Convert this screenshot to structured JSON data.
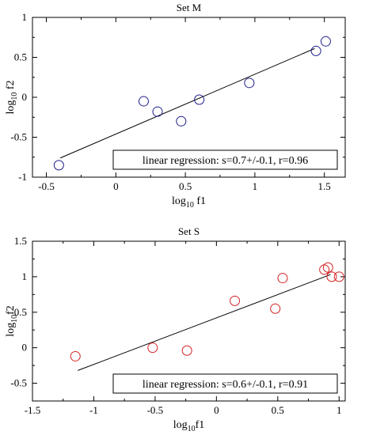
{
  "chart_data": [
    {
      "type": "scatter",
      "title": "Set M",
      "xlabel_base": "log",
      "xlabel_sub": "10",
      "xlabel_rest": " f1",
      "ylabel_base": "log",
      "ylabel_sub": "10",
      "ylabel_rest": " f2",
      "xlim": [
        -0.6,
        1.65
      ],
      "ylim": [
        -1,
        1
      ],
      "xticks": [
        -0.5,
        0,
        0.5,
        1,
        1.5
      ],
      "xtick_labels": [
        "-0.5",
        "0",
        "0.5",
        "1",
        "1.5"
      ],
      "yticks": [
        -1,
        -0.5,
        0,
        0.5,
        1
      ],
      "ytick_labels": [
        "-1",
        "-0.5",
        "0",
        "0.5",
        "1"
      ],
      "grid": false,
      "marker_color": "#1c1c8c",
      "points": [
        {
          "x": -0.41,
          "y": -0.85
        },
        {
          "x": 0.2,
          "y": -0.05
        },
        {
          "x": 0.3,
          "y": -0.18
        },
        {
          "x": 0.47,
          "y": -0.3
        },
        {
          "x": 0.6,
          "y": -0.03
        },
        {
          "x": 0.96,
          "y": 0.18
        },
        {
          "x": 1.44,
          "y": 0.58
        },
        {
          "x": 1.51,
          "y": 0.7
        }
      ],
      "fit_line": {
        "x": [
          -0.4,
          1.43
        ],
        "y": [
          -0.76,
          0.61
        ]
      },
      "annotation": "linear regression: s=0.7+/-0.1, r=0.96"
    },
    {
      "type": "scatter",
      "title": "Set S",
      "xlabel_base": "log",
      "xlabel_sub": "10",
      "xlabel_rest": "f1",
      "ylabel_base": "log",
      "ylabel_sub": "10",
      "ylabel_rest": "f2",
      "xlim": [
        -1.5,
        1.05
      ],
      "ylim": [
        -0.75,
        1.5
      ],
      "xticks": [
        -1.5,
        -1,
        -0.5,
        0,
        0.5,
        1
      ],
      "xtick_labels": [
        "-1.5",
        "-1",
        "-0.5",
        "0",
        "0.5",
        "1"
      ],
      "yticks": [
        -0.5,
        0,
        0.5,
        1,
        1.5
      ],
      "ytick_labels": [
        "-0.5",
        "0",
        "0.5",
        "1",
        "1.5"
      ],
      "grid": false,
      "marker_color": "#d42020",
      "points": [
        {
          "x": -1.15,
          "y": -0.12
        },
        {
          "x": -0.52,
          "y": 0.0
        },
        {
          "x": -0.24,
          "y": -0.04
        },
        {
          "x": 0.15,
          "y": 0.66
        },
        {
          "x": 0.48,
          "y": 0.55
        },
        {
          "x": 0.54,
          "y": 0.98
        },
        {
          "x": 0.88,
          "y": 1.1
        },
        {
          "x": 0.91,
          "y": 1.13
        },
        {
          "x": 0.94,
          "y": 1.0
        },
        {
          "x": 1.0,
          "y": 1.0
        }
      ],
      "fit_line": {
        "x": [
          -1.13,
          0.93
        ],
        "y": [
          -0.32,
          1.03
        ]
      },
      "annotation": "linear regression: s=0.6+/-0.1, r=0.91"
    }
  ]
}
